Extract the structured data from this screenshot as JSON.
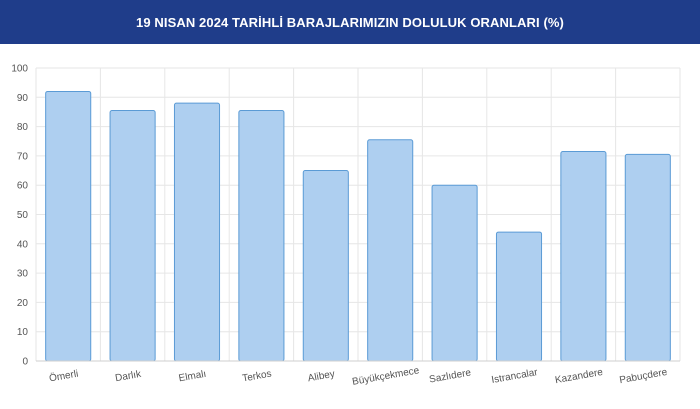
{
  "header": {
    "title": "19 NISAN 2024 TARİHLİ BARAJLARIMIZIN DOLULUK ORANLARI (%)"
  },
  "colors": {
    "header_bg": "#1f3d8a",
    "bar_fill": "#aecff0",
    "bar_stroke": "#5b9bd5",
    "grid": "#e6e6e6"
  },
  "chart_data": {
    "type": "bar",
    "title": "19 NISAN 2024 TARİHLİ BARAJLARIMIZIN DOLULUK ORANLARI (%)",
    "xlabel": "",
    "ylabel": "",
    "ylim": [
      0,
      100
    ],
    "yticks": [
      0,
      10,
      20,
      30,
      40,
      50,
      60,
      70,
      80,
      90,
      100
    ],
    "categories": [
      "Ömerli",
      "Darlık",
      "Elmalı",
      "Terkos",
      "Alibey",
      "Büyükçekmece",
      "Sazlıdere",
      "Istrancalar",
      "Kazandere",
      "Pabuçdere"
    ],
    "values": [
      92,
      85.5,
      88,
      85.5,
      65,
      75.5,
      60,
      44,
      71.5,
      70.5
    ],
    "grid": true,
    "legend": "none"
  }
}
